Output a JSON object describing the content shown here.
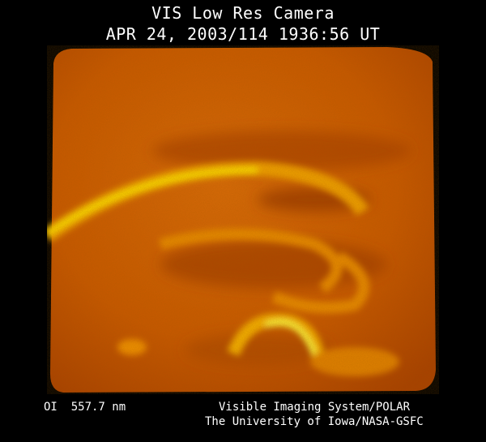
{
  "header": {
    "title": "VIS Low Res Camera",
    "timestamp": "APR 24, 2003/114 1936:56 UT"
  },
  "image": {
    "subject": "auroral-oval-image",
    "colormap": [
      "#3a0a00",
      "#8a2a00",
      "#c85a00",
      "#e88a00",
      "#ffd000",
      "#ffff40"
    ]
  },
  "footer": {
    "wavelength": "OI  557.7 nm",
    "credit_line1": "Visible Imaging System/POLAR",
    "credit_line2": "The University of Iowa/NASA-GSFC"
  }
}
